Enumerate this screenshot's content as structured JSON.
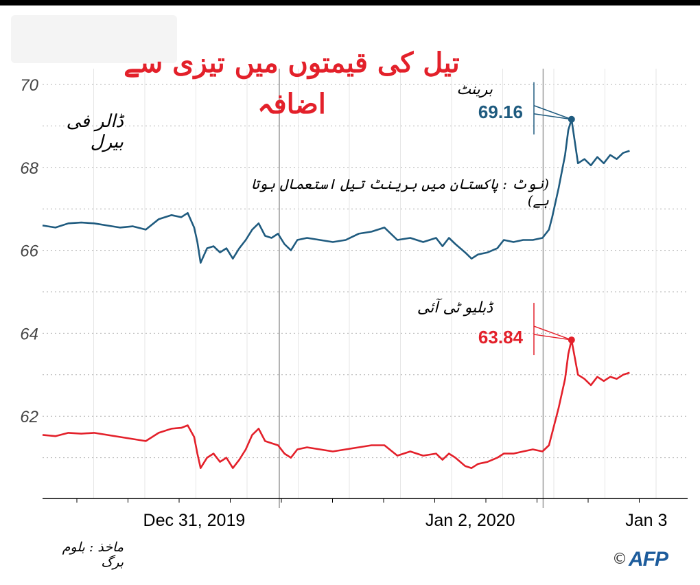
{
  "title": "تیل کی قیمتوں میں تیزی سے اضافہ",
  "unit_label": "ڈالر فی بیرل",
  "note": "(نوٹ : پاکستان میں برینٹ تیل استعمال ہوتا ہے)",
  "source": "ماخذ : بلوم برگ",
  "credit": {
    "copyright_symbol": "©",
    "agency": "AFP"
  },
  "colors": {
    "brent": "#1f5b7f",
    "wti": "#e3202a",
    "title": "#e3202a",
    "grid": "#9a9a9a"
  },
  "chart_data": {
    "type": "line",
    "title": "تیل کی قیمتوں میں تیزی سے اضافہ",
    "ylabel": "ڈالر فی بیرل",
    "ylim": [
      60.2,
      70.2
    ],
    "yticks": [
      62,
      64,
      66,
      68,
      70
    ],
    "xlim": [
      0,
      1
    ],
    "x_tick_labels": [
      {
        "label": "Dec 31, 2019",
        "x": 0.235
      },
      {
        "label": "Jan 2, 2020",
        "x": 0.663
      },
      {
        "label": "Jan 3",
        "x": 0.936
      }
    ],
    "grid": "dotted",
    "series": [
      {
        "name": "برینٹ",
        "last_label": "69.16",
        "points": [
          [
            0.0,
            66.6
          ],
          [
            0.02,
            66.55
          ],
          [
            0.04,
            66.65
          ],
          [
            0.06,
            66.67
          ],
          [
            0.08,
            66.65
          ],
          [
            0.1,
            66.6
          ],
          [
            0.12,
            66.55
          ],
          [
            0.14,
            66.58
          ],
          [
            0.16,
            66.5
          ],
          [
            0.18,
            66.75
          ],
          [
            0.2,
            66.85
          ],
          [
            0.215,
            66.8
          ],
          [
            0.225,
            66.9
          ],
          [
            0.235,
            66.55
          ],
          [
            0.24,
            66.2
          ],
          [
            0.245,
            65.7
          ],
          [
            0.255,
            66.05
          ],
          [
            0.265,
            66.1
          ],
          [
            0.275,
            65.95
          ],
          [
            0.285,
            66.05
          ],
          [
            0.295,
            65.8
          ],
          [
            0.305,
            66.05
          ],
          [
            0.315,
            66.25
          ],
          [
            0.325,
            66.5
          ],
          [
            0.335,
            66.65
          ],
          [
            0.345,
            66.35
          ],
          [
            0.355,
            66.3
          ],
          [
            0.365,
            66.4
          ],
          [
            0.375,
            66.15
          ],
          [
            0.385,
            66.0
          ],
          [
            0.395,
            66.25
          ],
          [
            0.41,
            66.3
          ],
          [
            0.43,
            66.25
          ],
          [
            0.45,
            66.2
          ],
          [
            0.47,
            66.25
          ],
          [
            0.49,
            66.4
          ],
          [
            0.51,
            66.45
          ],
          [
            0.53,
            66.55
          ],
          [
            0.55,
            66.25
          ],
          [
            0.57,
            66.3
          ],
          [
            0.59,
            66.2
          ],
          [
            0.61,
            66.3
          ],
          [
            0.62,
            66.1
          ],
          [
            0.63,
            66.3
          ],
          [
            0.64,
            66.15
          ],
          [
            0.655,
            65.95
          ],
          [
            0.665,
            65.8
          ],
          [
            0.675,
            65.9
          ],
          [
            0.69,
            65.95
          ],
          [
            0.705,
            66.05
          ],
          [
            0.715,
            66.25
          ],
          [
            0.73,
            66.2
          ],
          [
            0.745,
            66.25
          ],
          [
            0.76,
            66.25
          ],
          [
            0.775,
            66.3
          ],
          [
            0.785,
            66.5
          ],
          [
            0.79,
            66.8
          ],
          [
            0.8,
            67.5
          ],
          [
            0.81,
            68.3
          ],
          [
            0.815,
            68.9
          ],
          [
            0.82,
            69.16
          ],
          [
            0.83,
            68.1
          ],
          [
            0.84,
            68.2
          ],
          [
            0.85,
            68.05
          ],
          [
            0.86,
            68.25
          ],
          [
            0.87,
            68.1
          ],
          [
            0.88,
            68.3
          ],
          [
            0.89,
            68.2
          ],
          [
            0.9,
            68.35
          ],
          [
            0.91,
            68.4
          ]
        ]
      },
      {
        "name": "ڈبلیو ٹی آئی",
        "last_label": "63.84",
        "points": [
          [
            0.0,
            61.55
          ],
          [
            0.02,
            61.52
          ],
          [
            0.04,
            61.6
          ],
          [
            0.06,
            61.58
          ],
          [
            0.08,
            61.6
          ],
          [
            0.1,
            61.55
          ],
          [
            0.12,
            61.5
          ],
          [
            0.14,
            61.45
          ],
          [
            0.16,
            61.4
          ],
          [
            0.18,
            61.6
          ],
          [
            0.2,
            61.7
          ],
          [
            0.215,
            61.72
          ],
          [
            0.225,
            61.78
          ],
          [
            0.235,
            61.5
          ],
          [
            0.24,
            61.1
          ],
          [
            0.245,
            60.75
          ],
          [
            0.255,
            61.0
          ],
          [
            0.265,
            61.1
          ],
          [
            0.275,
            60.9
          ],
          [
            0.285,
            61.0
          ],
          [
            0.295,
            60.75
          ],
          [
            0.305,
            60.95
          ],
          [
            0.315,
            61.2
          ],
          [
            0.325,
            61.55
          ],
          [
            0.335,
            61.7
          ],
          [
            0.345,
            61.4
          ],
          [
            0.355,
            61.35
          ],
          [
            0.365,
            61.3
          ],
          [
            0.375,
            61.1
          ],
          [
            0.385,
            61.0
          ],
          [
            0.395,
            61.2
          ],
          [
            0.41,
            61.25
          ],
          [
            0.43,
            61.2
          ],
          [
            0.45,
            61.15
          ],
          [
            0.47,
            61.2
          ],
          [
            0.49,
            61.25
          ],
          [
            0.51,
            61.3
          ],
          [
            0.53,
            61.3
          ],
          [
            0.55,
            61.05
          ],
          [
            0.57,
            61.15
          ],
          [
            0.59,
            61.05
          ],
          [
            0.61,
            61.1
          ],
          [
            0.62,
            60.95
          ],
          [
            0.63,
            61.1
          ],
          [
            0.64,
            61.0
          ],
          [
            0.655,
            60.8
          ],
          [
            0.665,
            60.75
          ],
          [
            0.675,
            60.85
          ],
          [
            0.69,
            60.9
          ],
          [
            0.705,
            61.0
          ],
          [
            0.715,
            61.1
          ],
          [
            0.73,
            61.1
          ],
          [
            0.745,
            61.15
          ],
          [
            0.76,
            61.2
          ],
          [
            0.775,
            61.15
          ],
          [
            0.785,
            61.3
          ],
          [
            0.79,
            61.6
          ],
          [
            0.8,
            62.2
          ],
          [
            0.81,
            62.9
          ],
          [
            0.815,
            63.5
          ],
          [
            0.82,
            63.84
          ],
          [
            0.83,
            63.0
          ],
          [
            0.84,
            62.9
          ],
          [
            0.85,
            62.75
          ],
          [
            0.86,
            62.95
          ],
          [
            0.87,
            62.85
          ],
          [
            0.88,
            62.95
          ],
          [
            0.89,
            62.9
          ],
          [
            0.9,
            63.0
          ],
          [
            0.91,
            63.05
          ]
        ]
      }
    ]
  }
}
